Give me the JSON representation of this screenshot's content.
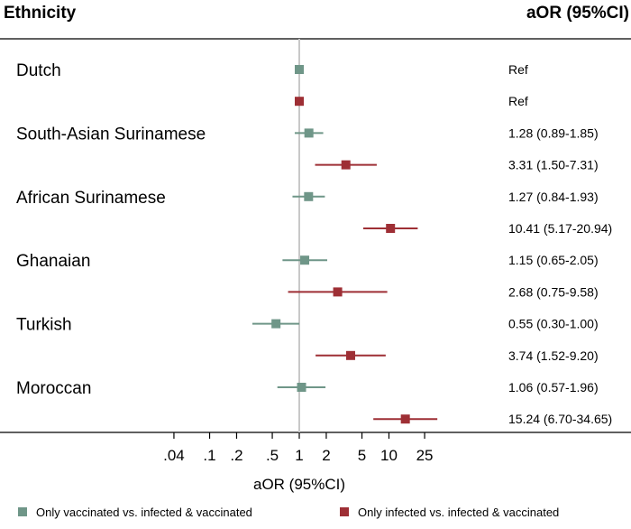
{
  "chart_data": {
    "type": "forest",
    "header_left": "Ethnicity",
    "header_right": "aOR (95%CI)",
    "xlabel": "aOR (95%CI)",
    "x_scale": "log",
    "xlim": [
      0.025,
      40
    ],
    "reference_value": 1,
    "ticks": [
      {
        "value": 0.04,
        "label": ".04"
      },
      {
        "value": 0.1,
        "label": ".1"
      },
      {
        "value": 0.2,
        "label": ".2"
      },
      {
        "value": 0.5,
        "label": ".5"
      },
      {
        "value": 1,
        "label": "1"
      },
      {
        "value": 2,
        "label": "2"
      },
      {
        "value": 5,
        "label": "5"
      },
      {
        "value": 10,
        "label": "10"
      },
      {
        "value": 25,
        "label": "25"
      }
    ],
    "series": [
      {
        "name": "Only vaccinated vs. infected & vaccinated",
        "color": "#6f9688"
      },
      {
        "name": "Only infected vs. infected & vaccinated",
        "color": "#9e2f35"
      }
    ],
    "groups": [
      {
        "name": "Dutch",
        "rows": [
          {
            "series": 0,
            "est": 1.0,
            "lo": null,
            "hi": null,
            "label": "Ref"
          },
          {
            "series": 1,
            "est": 1.0,
            "lo": null,
            "hi": null,
            "label": "Ref"
          }
        ]
      },
      {
        "name": "South-Asian Surinamese",
        "rows": [
          {
            "series": 0,
            "est": 1.28,
            "lo": 0.89,
            "hi": 1.85,
            "label": "1.28 (0.89-1.85)"
          },
          {
            "series": 1,
            "est": 3.31,
            "lo": 1.5,
            "hi": 7.31,
            "label": "3.31 (1.50-7.31)"
          }
        ]
      },
      {
        "name": "African Surinamese",
        "rows": [
          {
            "series": 0,
            "est": 1.27,
            "lo": 0.84,
            "hi": 1.93,
            "label": "1.27 (0.84-1.93)"
          },
          {
            "series": 1,
            "est": 10.41,
            "lo": 5.17,
            "hi": 20.94,
            "label": "10.41 (5.17-20.94)"
          }
        ]
      },
      {
        "name": "Ghanaian",
        "rows": [
          {
            "series": 0,
            "est": 1.15,
            "lo": 0.65,
            "hi": 2.05,
            "label": "1.15 (0.65-2.05)"
          },
          {
            "series": 1,
            "est": 2.68,
            "lo": 0.75,
            "hi": 9.58,
            "label": "2.68 (0.75-9.58)"
          }
        ]
      },
      {
        "name": "Turkish",
        "rows": [
          {
            "series": 0,
            "est": 0.55,
            "lo": 0.3,
            "hi": 1.0,
            "label": "0.55 (0.30-1.00)"
          },
          {
            "series": 1,
            "est": 3.74,
            "lo": 1.52,
            "hi": 9.2,
            "label": "3.74 (1.52-9.20)"
          }
        ]
      },
      {
        "name": "Moroccan",
        "rows": [
          {
            "series": 0,
            "est": 1.06,
            "lo": 0.57,
            "hi": 1.96,
            "label": "1.06 (0.57-1.96)"
          },
          {
            "series": 1,
            "est": 15.24,
            "lo": 6.7,
            "hi": 34.65,
            "label": "15.24 (6.70-34.65)"
          }
        ]
      }
    ]
  }
}
